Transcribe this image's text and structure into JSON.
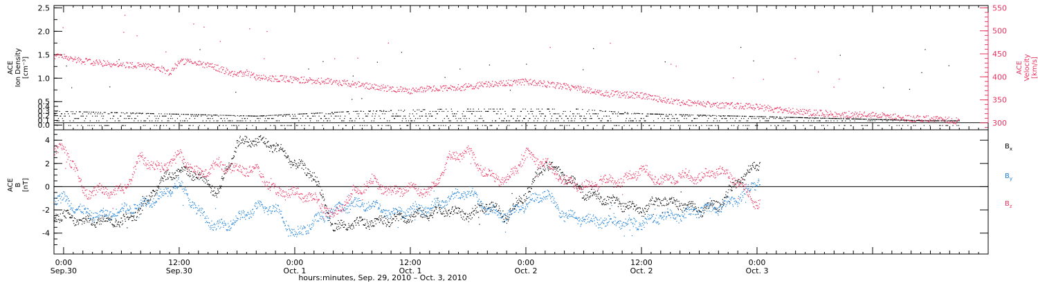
{
  "colors": {
    "density": "#000000",
    "velocity": "#e8325f",
    "bx": "#000000",
    "by": "#1a7fd8",
    "bz": "#e8325f"
  },
  "chart_data": [
    {
      "type": "scatter",
      "panel": "top",
      "ylabel_lines": [
        "ACE",
        "Ion Density",
        "[cm⁻³]"
      ],
      "ylim": [
        -0.1,
        2.55
      ],
      "yticks": [
        "0.0",
        "0.1",
        "0.2",
        "0.3",
        "0.4",
        "0.5",
        "1.0",
        "1.5",
        "2.0",
        "2.5"
      ],
      "ytick_values": [
        0.0,
        0.1,
        0.2,
        0.3,
        0.4,
        0.5,
        1.0,
        1.5,
        2.0,
        2.5
      ],
      "right_ylabel_lines": [
        "ACE",
        "Velocity",
        "[km/s]"
      ],
      "right_ylim": [
        285,
        555
      ],
      "right_yticks": [
        "300",
        "350",
        "400",
        "450",
        "500",
        "550"
      ],
      "right_ytick_values": [
        300,
        350,
        400,
        450,
        500,
        550
      ],
      "series": [
        {
          "name": "",
          "color_key": "density",
          "x_hours": [
            0,
            10,
            20,
            30,
            40,
            50,
            60,
            70,
            80,
            90
          ],
          "y": [
            0.25,
            0.2,
            0.15,
            0.25,
            0.3,
            0.35,
            0.2,
            0.15,
            0.1,
            0.05
          ]
        },
        {
          "name": "",
          "color_key": "velocity",
          "x_hours": [
            0,
            2,
            4,
            6,
            8,
            10,
            11,
            12,
            14,
            16,
            18,
            19,
            20,
            24,
            28,
            32,
            36,
            38,
            40,
            44,
            48,
            52,
            56,
            60,
            64,
            68,
            72,
            76,
            80,
            84,
            88,
            90,
            93
          ],
          "y": [
            445,
            435,
            430,
            428,
            425,
            420,
            410,
            435,
            430,
            420,
            405,
            410,
            400,
            395,
            390,
            380,
            370,
            375,
            375,
            385,
            390,
            380,
            365,
            360,
            345,
            340,
            335,
            325,
            320,
            318,
            310,
            310,
            305
          ]
        }
      ]
    },
    {
      "type": "scatter",
      "panel": "bottom",
      "ylabel_lines": [
        "ACE",
        "B",
        "[nT]"
      ],
      "ylim": [
        -5.8,
        4.9
      ],
      "yticks": [
        "-4",
        "-2",
        "0",
        "2",
        "4"
      ],
      "ytick_values": [
        -4,
        -2,
        0,
        2,
        4
      ],
      "xlabel": "hours:minutes, Sep. 29, 2010 – Oct.  3, 2010",
      "xlim_hours": [
        -1,
        96
      ],
      "xticks": [
        {
          "hour": 0,
          "time": "0:00",
          "date": "Sep.30"
        },
        {
          "hour": 12,
          "time": "12:00",
          "date": "Sep.30"
        },
        {
          "hour": 24,
          "time": "0:00",
          "date": "Oct. 1"
        },
        {
          "hour": 36,
          "time": "12:00",
          "date": "Oct. 1"
        },
        {
          "hour": 48,
          "time": "0:00",
          "date": "Oct. 2"
        },
        {
          "hour": 60,
          "time": "12:00",
          "date": "Oct. 2"
        },
        {
          "hour": 72,
          "time": "0:00",
          "date": "Oct. 3"
        }
      ],
      "series": [
        {
          "name": "B",
          "subscript": "x",
          "color_key": "bx",
          "x_hours": [
            0,
            2,
            4,
            6,
            8,
            10,
            12,
            14,
            16,
            18,
            20,
            22,
            24,
            26,
            28,
            32,
            36,
            40,
            42,
            44,
            46,
            48,
            50,
            52,
            54,
            56,
            58,
            60,
            62,
            64,
            66,
            68,
            70,
            72
          ],
          "y": [
            -2.5,
            -3,
            -2.8,
            -3,
            -2,
            0.5,
            1.5,
            1,
            -0.5,
            3.8,
            4,
            3.5,
            2,
            1,
            -3.5,
            -3,
            -2.5,
            -2,
            -2.5,
            -1.5,
            -2.5,
            -0.5,
            2,
            1,
            -0.5,
            -1,
            -1.5,
            -2,
            -1,
            -1.5,
            -2,
            -1.5,
            0.5,
            2
          ]
        },
        {
          "name": "B",
          "subscript": "y",
          "color_key": "by",
          "x_hours": [
            0,
            2,
            4,
            6,
            8,
            10,
            12,
            14,
            16,
            18,
            20,
            22,
            24,
            26,
            28,
            30,
            32,
            34,
            36,
            38,
            40,
            42,
            44,
            46,
            48,
            50,
            52,
            54,
            56,
            58,
            60,
            62,
            64,
            66,
            68,
            70,
            72
          ],
          "y": [
            -1,
            -2.2,
            -2.5,
            -2,
            -1.5,
            -0.8,
            0.3,
            -2.2,
            -3.5,
            -2.8,
            -1.8,
            -1.8,
            -4.2,
            -3,
            -2,
            -1.5,
            -1.5,
            -2.3,
            -2,
            -1.8,
            -1,
            -0.3,
            -2,
            -2.5,
            -1.5,
            -0.5,
            -2.5,
            -2.8,
            -3,
            -3,
            -3.2,
            -2.5,
            -2.5,
            -2,
            -1.8,
            -1,
            0.5
          ]
        },
        {
          "name": "B",
          "subscript": "z",
          "color_key": "bz",
          "x_hours": [
            0,
            1,
            2,
            4,
            6,
            8,
            10,
            12,
            14,
            16,
            18,
            20,
            22,
            24,
            26,
            28,
            30,
            32,
            34,
            36,
            38,
            40,
            42,
            44,
            46,
            48,
            50,
            52,
            54,
            56,
            58,
            60,
            62,
            64,
            66,
            68,
            70,
            72
          ],
          "y": [
            3.2,
            2,
            -0.5,
            -0.3,
            -0.5,
            2.5,
            1.5,
            2.8,
            1,
            2,
            1.5,
            1.5,
            -0.5,
            -0.5,
            -1,
            -2.5,
            -0.5,
            0.5,
            -0.5,
            0,
            -0.5,
            2.5,
            3,
            1,
            0.5,
            2.8,
            2,
            0.5,
            0,
            0.5,
            0.5,
            1.5,
            0.5,
            1,
            0.8,
            1.5,
            0.5,
            -1.5
          ]
        }
      ]
    }
  ]
}
